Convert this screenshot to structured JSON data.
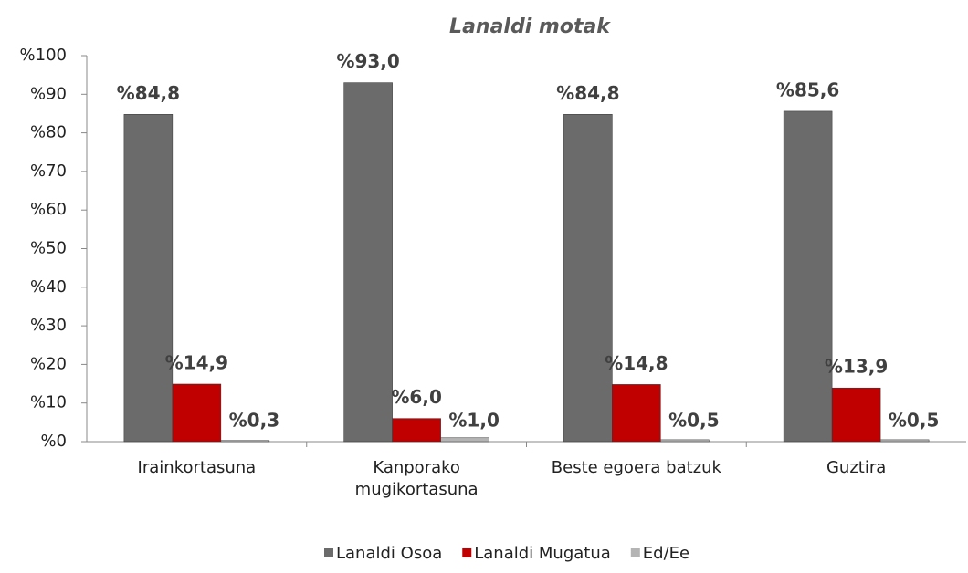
{
  "chart_data": {
    "type": "bar",
    "title": "Lanaldi motak",
    "categories": [
      "Irainkortasuna",
      "Kanporako mugikortasuna",
      "Beste egoera batzuk",
      "Guztira"
    ],
    "series": [
      {
        "name": "Lanaldi Osoa",
        "color": "#6b6b6b",
        "values": [
          84.8,
          93.0,
          84.8,
          85.6
        ],
        "value_labels": [
          "%84,8",
          "%93,0",
          "%84,8",
          "%85,6"
        ]
      },
      {
        "name": "Lanaldi Mugatua",
        "color": "#c00000",
        "values": [
          14.9,
          6.0,
          14.8,
          13.9
        ],
        "value_labels": [
          "%14,9",
          "%6,0",
          "%14,8",
          "%13,9"
        ]
      },
      {
        "name": "Ed/Ee",
        "color": "#b4b4b4",
        "values": [
          0.3,
          1.0,
          0.5,
          0.5
        ],
        "value_labels": [
          "%0,3",
          "%1,0",
          "%0,5",
          "%0,5"
        ]
      }
    ],
    "ylim": [
      0,
      100
    ],
    "yticks": [
      {
        "value": 0,
        "label": "%0"
      },
      {
        "value": 10,
        "label": "%10"
      },
      {
        "value": 20,
        "label": "%20"
      },
      {
        "value": 30,
        "label": "%30"
      },
      {
        "value": 40,
        "label": "%40"
      },
      {
        "value": 50,
        "label": "%50"
      },
      {
        "value": 60,
        "label": "%60"
      },
      {
        "value": 70,
        "label": "%70"
      },
      {
        "value": 80,
        "label": "%80"
      },
      {
        "value": 90,
        "label": "%90"
      },
      {
        "value": 100,
        "label": "%100"
      }
    ],
    "grid": false,
    "legend": "bottom"
  }
}
